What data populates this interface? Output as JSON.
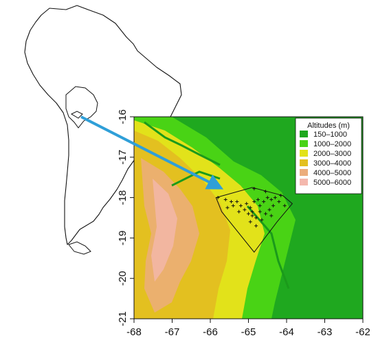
{
  "legend": {
    "title": "Altitudes (m)",
    "entries": [
      {
        "label": "150–1000",
        "color": "#1fa81f"
      },
      {
        "label": "1000–2000",
        "color": "#49d315"
      },
      {
        "label": "2000–3000",
        "color": "#e2e21a"
      },
      {
        "label": "3000–4000",
        "color": "#e3c020"
      },
      {
        "label": "4000–5000",
        "color": "#ecad7c"
      },
      {
        "label": "5000–6000",
        "color": "#f4b8ad"
      }
    ]
  },
  "x_ticks": [
    "-68",
    "-67",
    "-66",
    "-65",
    "-64",
    "-63",
    "-62"
  ],
  "y_ticks": [
    "-16",
    "-17",
    "-18",
    "-19",
    "-20",
    "-21"
  ],
  "colors": {
    "arrow": "#2f9fd8",
    "lowland": "#1fa81f",
    "altiplano": "#e2c61a"
  },
  "study_area": {
    "polygon": [
      [
        -65.85,
        -18.0
      ],
      [
        -64.9,
        -17.75
      ],
      [
        -64.1,
        -17.95
      ],
      [
        -63.85,
        -18.15
      ],
      [
        -64.25,
        -18.6
      ],
      [
        -64.85,
        -19.35
      ],
      [
        -65.7,
        -18.35
      ]
    ],
    "sample_points": [
      [
        -65.8,
        -18.0
      ],
      [
        -65.6,
        -18.05
      ],
      [
        -65.45,
        -18.1
      ],
      [
        -65.4,
        -18.2
      ],
      [
        -65.3,
        -18.1
      ],
      [
        -65.2,
        -18.2
      ],
      [
        -65.05,
        -18.15
      ],
      [
        -64.95,
        -18.25
      ],
      [
        -64.85,
        -18.1
      ],
      [
        -64.75,
        -18.05
      ],
      [
        -64.6,
        -18.1
      ],
      [
        -64.5,
        -18.0
      ],
      [
        -64.4,
        -18.05
      ],
      [
        -64.3,
        -18.0
      ],
      [
        -64.2,
        -18.1
      ],
      [
        -64.55,
        -17.85
      ],
      [
        -64.85,
        -17.78
      ],
      [
        -64.15,
        -17.95
      ],
      [
        -65.0,
        -18.4
      ],
      [
        -64.9,
        -18.45
      ],
      [
        -64.8,
        -18.5
      ],
      [
        -64.7,
        -18.35
      ],
      [
        -64.55,
        -18.4
      ],
      [
        -64.4,
        -18.45
      ],
      [
        -64.95,
        -18.6
      ],
      [
        -64.8,
        -18.7
      ],
      [
        -65.1,
        -18.3
      ],
      [
        -65.55,
        -18.25
      ],
      [
        -64.35,
        -18.2
      ],
      [
        -64.05,
        -18.2
      ],
      [
        -65.25,
        -18.35
      ],
      [
        -64.65,
        -18.55
      ],
      [
        -64.45,
        -18.3
      ],
      [
        -64.9,
        -18.35
      ],
      [
        -64.7,
        -18.2
      ]
    ]
  }
}
